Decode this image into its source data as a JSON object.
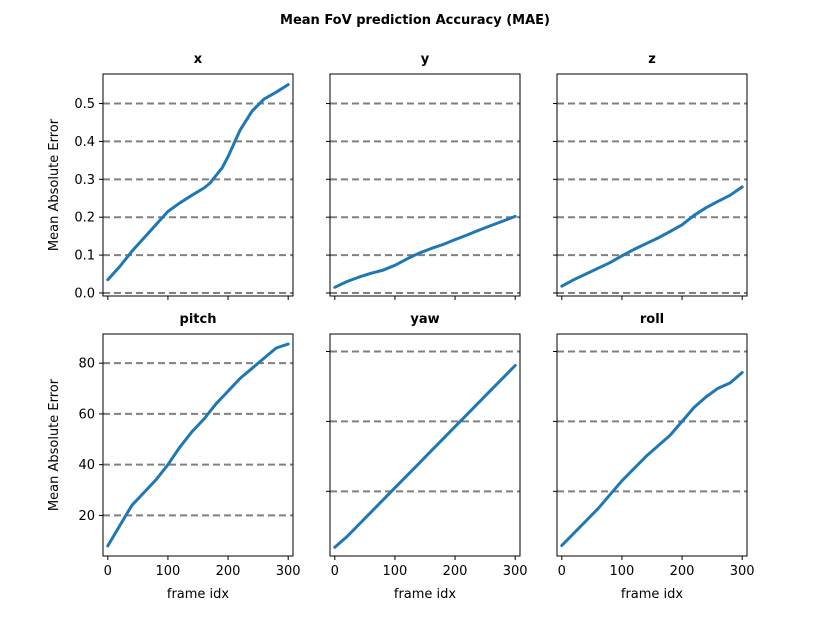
{
  "figure": {
    "title": "Mean FoV prediction Accuracy (MAE)"
  },
  "chart_data": [
    {
      "type": "line",
      "title": "x",
      "xlabel": "",
      "ylabel": "Mean Absolute Error",
      "xlim": [
        -8,
        308
      ],
      "ylim": [
        -0.008,
        0.578
      ],
      "yticks": [
        0.0,
        0.1,
        0.2,
        0.3,
        0.4,
        0.5
      ],
      "ytick_labels": [
        "0.0",
        "0.1",
        "0.2",
        "0.3",
        "0.4",
        "0.5"
      ],
      "xticks": [
        0,
        100,
        200,
        300
      ],
      "xtick_labels": [],
      "grid": "horizontal-dashed",
      "line_color": "#1f77b4",
      "x": [
        0,
        20,
        40,
        60,
        80,
        100,
        120,
        140,
        160,
        170,
        180,
        190,
        200,
        210,
        220,
        240,
        260,
        280,
        300
      ],
      "y": [
        0.035,
        0.07,
        0.11,
        0.145,
        0.18,
        0.215,
        0.238,
        0.258,
        0.277,
        0.29,
        0.31,
        0.33,
        0.36,
        0.395,
        0.43,
        0.48,
        0.512,
        0.53,
        0.55
      ]
    },
    {
      "type": "line",
      "title": "y",
      "xlabel": "",
      "ylabel": "",
      "xlim": [
        -8,
        308
      ],
      "ylim": [
        -0.008,
        0.578
      ],
      "yticks": [
        0.0,
        0.1,
        0.2,
        0.3,
        0.4,
        0.5
      ],
      "ytick_labels": [],
      "xticks": [
        0,
        100,
        200,
        300
      ],
      "xtick_labels": [],
      "grid": "horizontal-dashed",
      "line_color": "#1f77b4",
      "x": [
        0,
        20,
        40,
        60,
        80,
        100,
        120,
        140,
        160,
        180,
        200,
        220,
        240,
        260,
        280,
        300
      ],
      "y": [
        0.015,
        0.03,
        0.042,
        0.052,
        0.06,
        0.073,
        0.09,
        0.105,
        0.117,
        0.128,
        0.141,
        0.153,
        0.166,
        0.178,
        0.19,
        0.202
      ]
    },
    {
      "type": "line",
      "title": "z",
      "xlabel": "",
      "ylabel": "",
      "xlim": [
        -8,
        308
      ],
      "ylim": [
        -0.008,
        0.578
      ],
      "yticks": [
        0.0,
        0.1,
        0.2,
        0.3,
        0.4,
        0.5
      ],
      "ytick_labels": [],
      "xticks": [
        0,
        100,
        200,
        300
      ],
      "xtick_labels": [],
      "grid": "horizontal-dashed",
      "line_color": "#1f77b4",
      "x": [
        0,
        20,
        40,
        60,
        80,
        100,
        120,
        140,
        160,
        180,
        200,
        220,
        240,
        260,
        280,
        300
      ],
      "y": [
        0.018,
        0.035,
        0.05,
        0.065,
        0.08,
        0.098,
        0.115,
        0.13,
        0.145,
        0.162,
        0.18,
        0.205,
        0.225,
        0.242,
        0.258,
        0.28
      ]
    },
    {
      "type": "line",
      "title": "pitch",
      "xlabel": "frame idx",
      "ylabel": "Mean Absolute Error",
      "xlim": [
        -8,
        308
      ],
      "ylim": [
        4,
        91.5
      ],
      "yticks": [
        20,
        40,
        60,
        80
      ],
      "ytick_labels": [
        "20",
        "40",
        "60",
        "80"
      ],
      "xticks": [
        0,
        100,
        200,
        300
      ],
      "xtick_labels": [
        "0",
        "100",
        "200",
        "300"
      ],
      "grid": "horizontal-dashed",
      "line_color": "#1f77b4",
      "x": [
        0,
        20,
        40,
        60,
        80,
        100,
        120,
        140,
        160,
        180,
        200,
        220,
        240,
        260,
        280,
        300
      ],
      "y": [
        8,
        16,
        24,
        29,
        34,
        40,
        47,
        53,
        58,
        64,
        69,
        74,
        78,
        82,
        86,
        87.5
      ]
    },
    {
      "type": "line",
      "title": "yaw",
      "xlabel": "frame idx",
      "ylabel": "",
      "xlim": [
        -8,
        308
      ],
      "ylim": [
        1.5,
        65
      ],
      "yticks": [
        20,
        40,
        60
      ],
      "ytick_labels": [],
      "xticks": [
        0,
        100,
        200,
        300
      ],
      "xtick_labels": [
        "0",
        "100",
        "200",
        "300"
      ],
      "grid": "horizontal-dashed",
      "line_color": "#1f77b4",
      "x": [
        0,
        20,
        40,
        60,
        80,
        100,
        120,
        140,
        160,
        180,
        200,
        220,
        240,
        260,
        280,
        300
      ],
      "y": [
        4,
        7,
        10.5,
        14,
        17.5,
        21,
        24.5,
        28,
        31.5,
        35,
        38.5,
        42,
        45.5,
        49,
        52.5,
        56
      ]
    },
    {
      "type": "line",
      "title": "roll",
      "xlabel": "frame idx",
      "ylabel": "",
      "xlim": [
        -8,
        308
      ],
      "ylim": [
        1.5,
        65
      ],
      "yticks": [
        20,
        40,
        60
      ],
      "ytick_labels": [],
      "xticks": [
        0,
        100,
        200,
        300
      ],
      "xtick_labels": [
        "0",
        "100",
        "200",
        "300"
      ],
      "grid": "horizontal-dashed",
      "line_color": "#1f77b4",
      "x": [
        0,
        20,
        40,
        60,
        80,
        100,
        120,
        140,
        160,
        180,
        200,
        220,
        240,
        260,
        280,
        300
      ],
      "y": [
        4.5,
        8,
        11.5,
        15,
        19,
        23,
        26.5,
        30,
        33,
        36,
        40,
        44,
        47,
        49.5,
        51,
        54
      ]
    }
  ]
}
